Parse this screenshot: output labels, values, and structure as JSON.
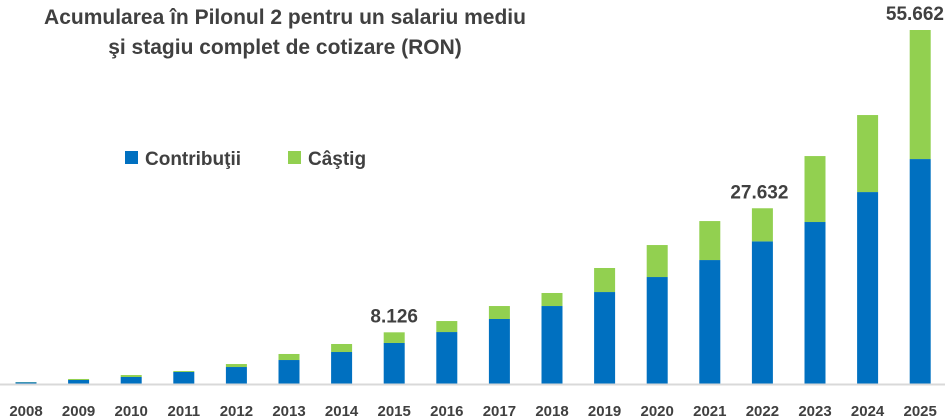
{
  "chart_data": {
    "type": "bar",
    "stacked": true,
    "title_lines": [
      "Acumularea în Pilonul 2 pentru un salariu mediu",
      "şi stagiu complet de cotizare (RON)"
    ],
    "xlabel": "",
    "ylabel": "",
    "ylim": [
      0,
      56000
    ],
    "grid": false,
    "legend_position": "upper-left-center",
    "categories": [
      "2008",
      "2009",
      "2010",
      "2011",
      "2012",
      "2013",
      "2014",
      "2015",
      "2016",
      "2017",
      "2018",
      "2019",
      "2020",
      "2021",
      "2022",
      "2023",
      "2024",
      "2025"
    ],
    "series": [
      {
        "name": "Contribuţii",
        "color": "#0070C0",
        "values": [
          280,
          630,
          1100,
          1890,
          2670,
          3770,
          5030,
          6450,
          8170,
          10220,
          12260,
          14460,
          16820,
          19490,
          22420,
          25470,
          30180,
          35370
        ]
      },
      {
        "name": "Câştig",
        "color": "#92D050",
        "values": [
          30,
          160,
          310,
          150,
          470,
          950,
          1260,
          1676,
          1730,
          2040,
          2050,
          3780,
          5030,
          6130,
          5212,
          10370,
          12110,
          20292
        ]
      }
    ],
    "data_labels": [
      {
        "category": "2015",
        "text": "8.126"
      },
      {
        "category": "2022",
        "text": "27.632"
      },
      {
        "category": "2025",
        "text": "55.662"
      }
    ]
  }
}
